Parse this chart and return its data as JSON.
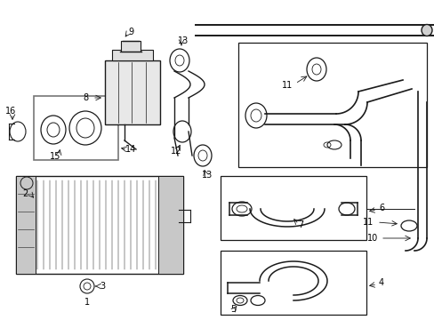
{
  "bg_color": "#ffffff",
  "line_color": "#1a1a1a",
  "fig_width": 4.89,
  "fig_height": 3.6,
  "dpi": 100,
  "gray_box_color": "#888888",
  "light_gray": "#cccccc"
}
